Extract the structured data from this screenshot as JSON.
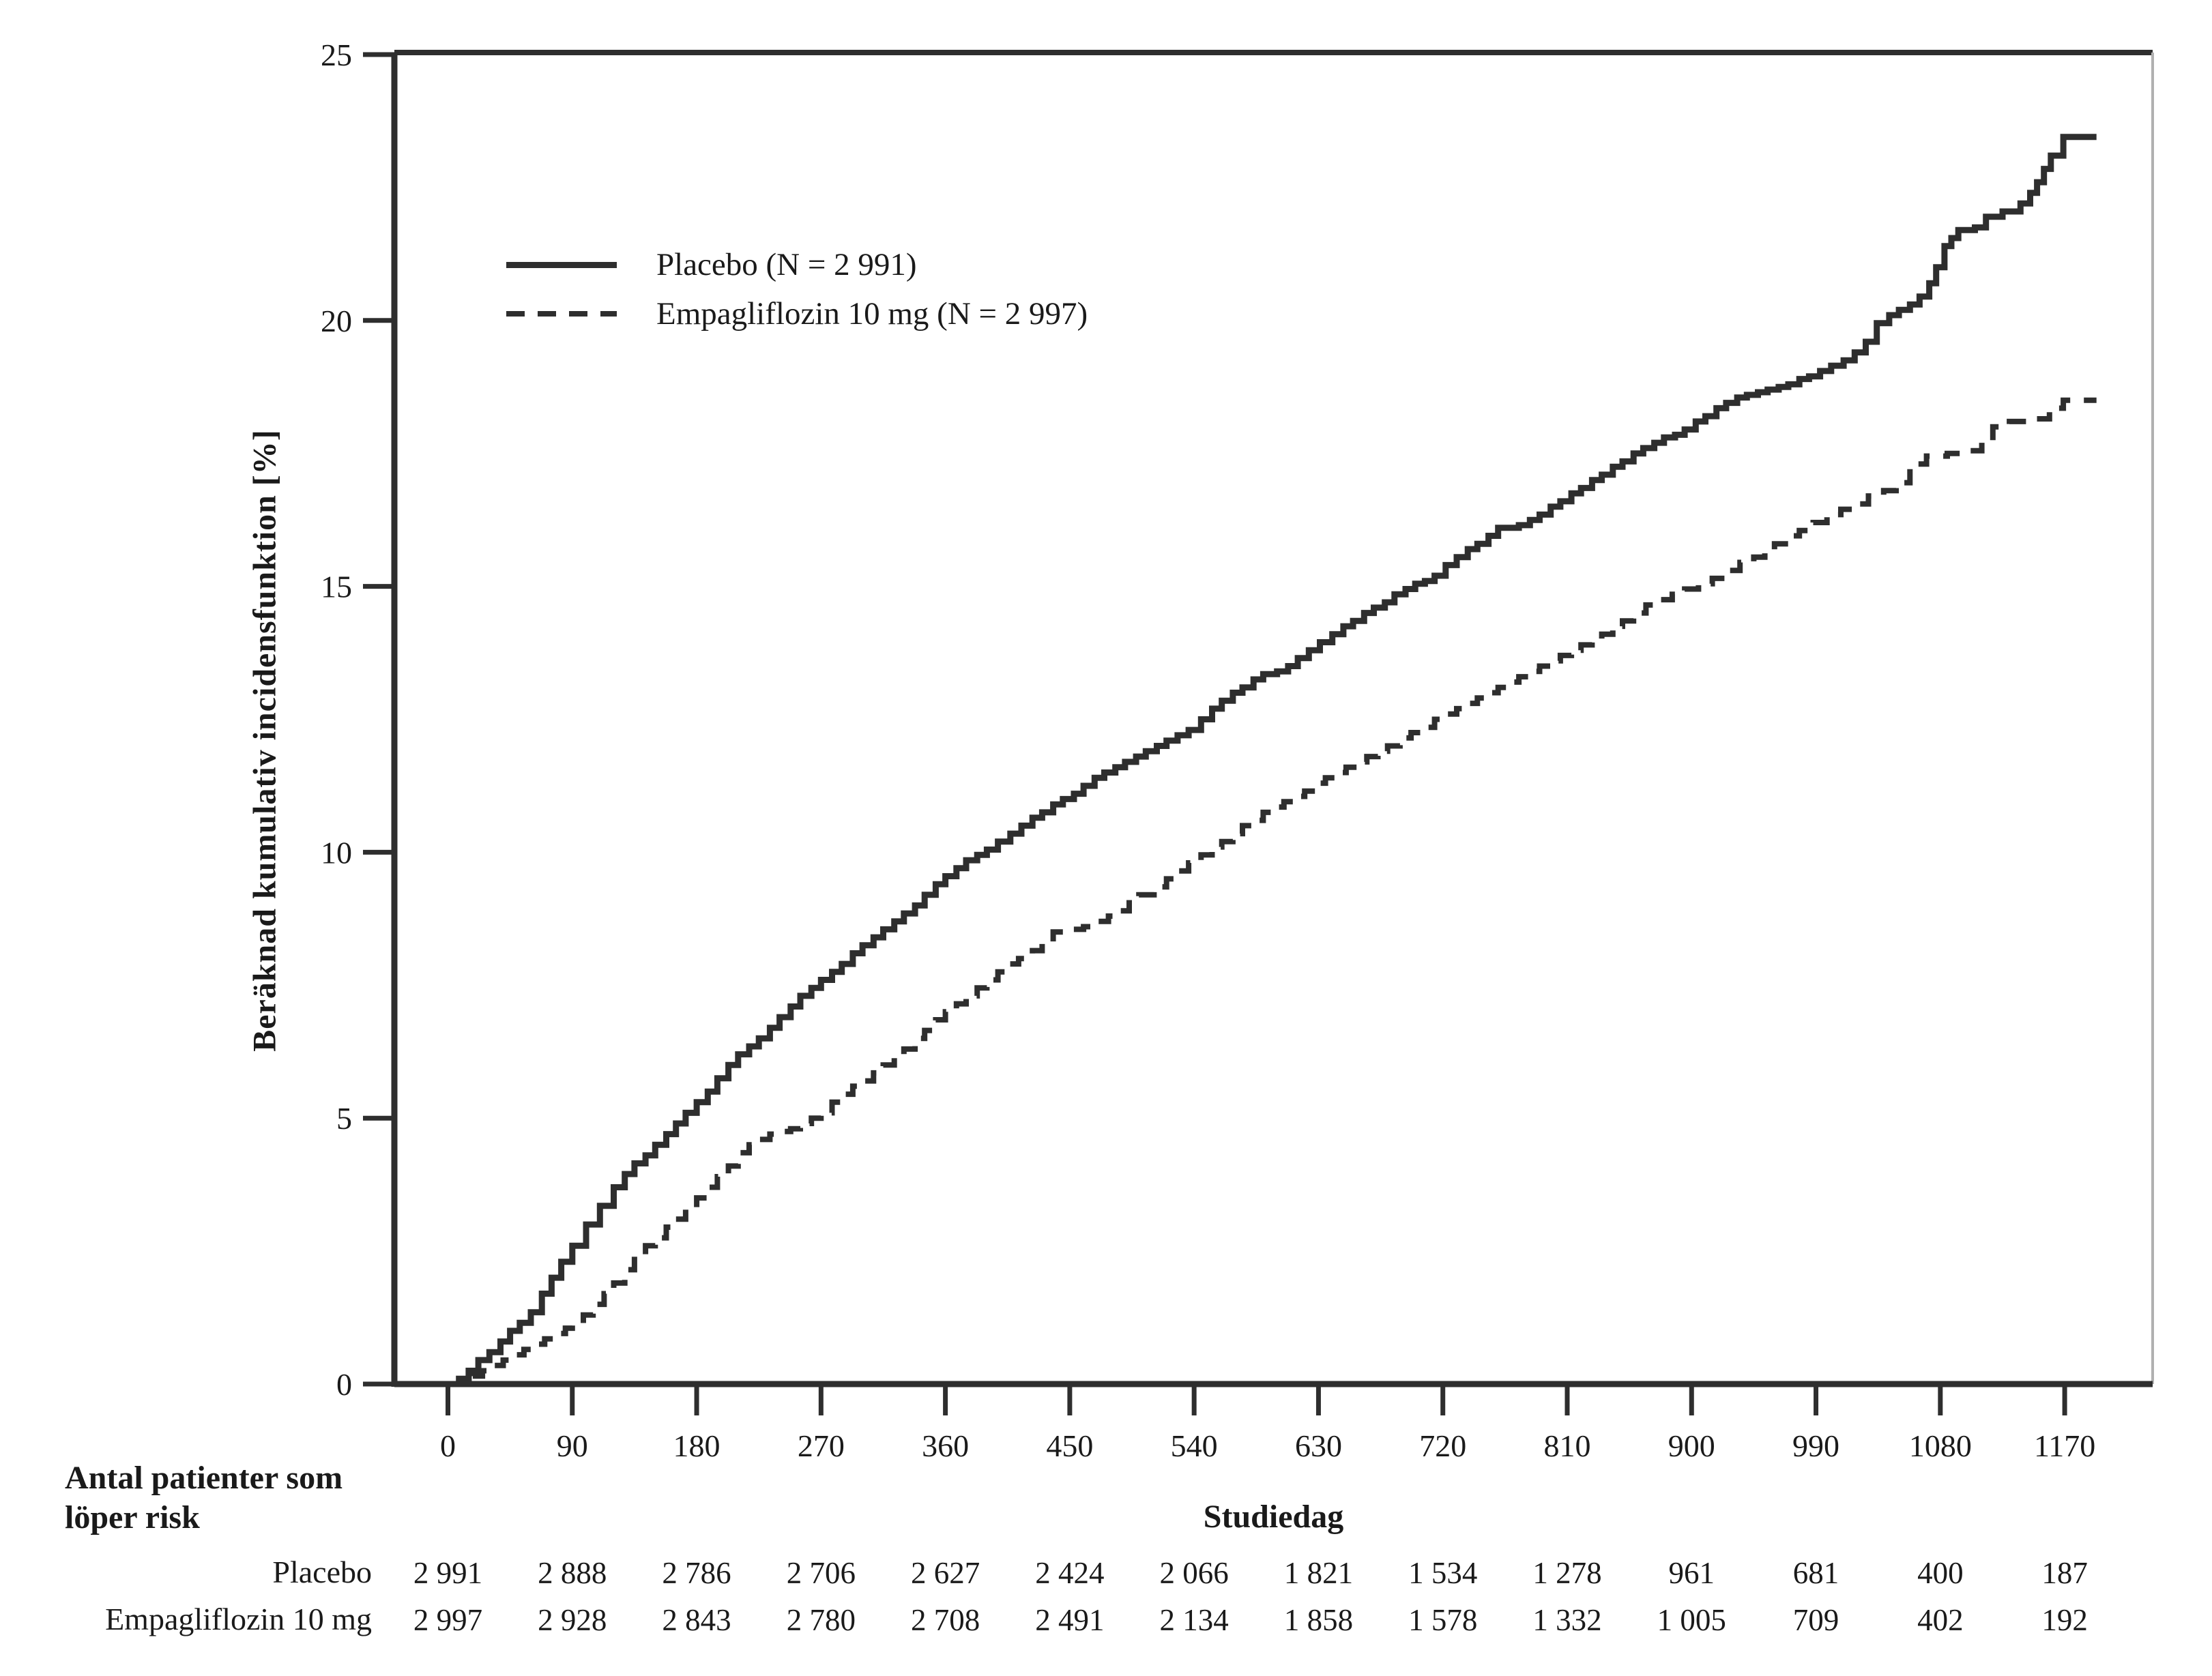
{
  "figure": {
    "background": "#ffffff",
    "risk_table": {
      "header_line1": "Antal patienter som",
      "header_line2": "löper risk",
      "rows": [
        {
          "label": "Placebo",
          "values": [
            "2 991",
            "2 888",
            "2 786",
            "2 706",
            "2 627",
            "2 424",
            "2 066",
            "1 821",
            "1 534",
            "1 278",
            "961",
            "681",
            "400",
            "187"
          ]
        },
        {
          "label": "Empagliflozin 10 mg",
          "values": [
            "2 997",
            "2 928",
            "2 843",
            "2 780",
            "2 708",
            "2 491",
            "2 134",
            "1 858",
            "1 578",
            "1 332",
            "1 005",
            "709",
            "402",
            "192"
          ]
        }
      ]
    }
  },
  "colors": {
    "line": "#2e2e2e",
    "axis": "#2e2e2e",
    "right_border": "#b0b0b0",
    "text": "#1a1a1a"
  },
  "chart_data": {
    "type": "line",
    "subtype": "step-after-cumulative-incidence",
    "title": "",
    "xlabel": "Studiedag",
    "ylabel": "Beräknad kumulativ incidensfunktion [%]",
    "xlim": [
      0,
      1215
    ],
    "ylim": [
      0,
      25
    ],
    "xticks": [
      0,
      90,
      180,
      270,
      360,
      450,
      540,
      630,
      720,
      810,
      900,
      990,
      1080,
      1170
    ],
    "yticks": [
      0,
      5,
      10,
      15,
      20,
      25
    ],
    "grid": false,
    "legend_position": "upper-left-inside",
    "series": [
      {
        "name": "Placebo (N = 2 991)",
        "line_style": "solid",
        "color": "#2e2e2e",
        "points": [
          [
            0,
            0
          ],
          [
            8,
            0.1
          ],
          [
            15,
            0.25
          ],
          [
            22,
            0.45
          ],
          [
            30,
            0.6
          ],
          [
            38,
            0.8
          ],
          [
            45,
            1.0
          ],
          [
            52,
            1.15
          ],
          [
            60,
            1.35
          ],
          [
            68,
            1.7
          ],
          [
            75,
            2.0
          ],
          [
            82,
            2.3
          ],
          [
            90,
            2.6
          ],
          [
            100,
            3.0
          ],
          [
            110,
            3.35
          ],
          [
            120,
            3.7
          ],
          [
            128,
            3.95
          ],
          [
            135,
            4.15
          ],
          [
            143,
            4.3
          ],
          [
            150,
            4.5
          ],
          [
            158,
            4.7
          ],
          [
            165,
            4.9
          ],
          [
            172,
            5.1
          ],
          [
            180,
            5.3
          ],
          [
            188,
            5.5
          ],
          [
            195,
            5.75
          ],
          [
            203,
            6.0
          ],
          [
            210,
            6.2
          ],
          [
            218,
            6.35
          ],
          [
            225,
            6.5
          ],
          [
            233,
            6.7
          ],
          [
            240,
            6.9
          ],
          [
            248,
            7.1
          ],
          [
            255,
            7.3
          ],
          [
            263,
            7.45
          ],
          [
            270,
            7.6
          ],
          [
            278,
            7.75
          ],
          [
            285,
            7.9
          ],
          [
            293,
            8.1
          ],
          [
            300,
            8.25
          ],
          [
            308,
            8.4
          ],
          [
            315,
            8.55
          ],
          [
            323,
            8.7
          ],
          [
            330,
            8.85
          ],
          [
            338,
            9.0
          ],
          [
            345,
            9.2
          ],
          [
            353,
            9.4
          ],
          [
            360,
            9.55
          ],
          [
            368,
            9.7
          ],
          [
            375,
            9.85
          ],
          [
            383,
            9.95
          ],
          [
            390,
            10.05
          ],
          [
            398,
            10.2
          ],
          [
            407,
            10.35
          ],
          [
            415,
            10.5
          ],
          [
            423,
            10.65
          ],
          [
            430,
            10.75
          ],
          [
            438,
            10.9
          ],
          [
            445,
            11.0
          ],
          [
            453,
            11.1
          ],
          [
            460,
            11.25
          ],
          [
            468,
            11.4
          ],
          [
            475,
            11.5
          ],
          [
            483,
            11.6
          ],
          [
            490,
            11.7
          ],
          [
            498,
            11.8
          ],
          [
            505,
            11.9
          ],
          [
            513,
            12.0
          ],
          [
            520,
            12.1
          ],
          [
            528,
            12.2
          ],
          [
            536,
            12.3
          ],
          [
            545,
            12.5
          ],
          [
            553,
            12.7
          ],
          [
            560,
            12.85
          ],
          [
            568,
            13.0
          ],
          [
            575,
            13.1
          ],
          [
            583,
            13.25
          ],
          [
            590,
            13.35
          ],
          [
            600,
            13.4
          ],
          [
            608,
            13.5
          ],
          [
            615,
            13.65
          ],
          [
            623,
            13.8
          ],
          [
            631,
            13.95
          ],
          [
            640,
            14.1
          ],
          [
            648,
            14.25
          ],
          [
            655,
            14.35
          ],
          [
            663,
            14.5
          ],
          [
            670,
            14.6
          ],
          [
            678,
            14.7
          ],
          [
            685,
            14.85
          ],
          [
            693,
            14.95
          ],
          [
            700,
            15.05
          ],
          [
            707,
            15.1
          ],
          [
            714,
            15.2
          ],
          [
            722,
            15.4
          ],
          [
            730,
            15.55
          ],
          [
            738,
            15.7
          ],
          [
            745,
            15.8
          ],
          [
            753,
            15.95
          ],
          [
            760,
            16.1
          ],
          [
            775,
            16.15
          ],
          [
            783,
            16.25
          ],
          [
            790,
            16.35
          ],
          [
            798,
            16.5
          ],
          [
            805,
            16.6
          ],
          [
            813,
            16.75
          ],
          [
            820,
            16.85
          ],
          [
            828,
            17.0
          ],
          [
            835,
            17.1
          ],
          [
            843,
            17.25
          ],
          [
            850,
            17.35
          ],
          [
            858,
            17.5
          ],
          [
            865,
            17.6
          ],
          [
            873,
            17.7
          ],
          [
            880,
            17.8
          ],
          [
            888,
            17.85
          ],
          [
            895,
            17.95
          ],
          [
            903,
            18.1
          ],
          [
            910,
            18.2
          ],
          [
            918,
            18.35
          ],
          [
            925,
            18.45
          ],
          [
            933,
            18.55
          ],
          [
            940,
            18.6
          ],
          [
            948,
            18.65
          ],
          [
            955,
            18.7
          ],
          [
            963,
            18.75
          ],
          [
            970,
            18.8
          ],
          [
            978,
            18.9
          ],
          [
            985,
            18.95
          ],
          [
            993,
            19.05
          ],
          [
            1001,
            19.15
          ],
          [
            1010,
            19.25
          ],
          [
            1018,
            19.4
          ],
          [
            1026,
            19.6
          ],
          [
            1034,
            19.95
          ],
          [
            1043,
            20.1
          ],
          [
            1050,
            20.2
          ],
          [
            1058,
            20.3
          ],
          [
            1065,
            20.45
          ],
          [
            1072,
            20.7
          ],
          [
            1077,
            21.0
          ],
          [
            1083,
            21.4
          ],
          [
            1088,
            21.55
          ],
          [
            1093,
            21.7
          ],
          [
            1105,
            21.75
          ],
          [
            1113,
            21.95
          ],
          [
            1125,
            22.05
          ],
          [
            1138,
            22.2
          ],
          [
            1145,
            22.4
          ],
          [
            1150,
            22.6
          ],
          [
            1155,
            22.85
          ],
          [
            1160,
            23.1
          ],
          [
            1169,
            23.45
          ],
          [
            1193,
            23.45
          ]
        ]
      },
      {
        "name": "Empagliflozin 10 mg (N = 2 997)",
        "line_style": "dashed",
        "color": "#2e2e2e",
        "points": [
          [
            0,
            0
          ],
          [
            10,
            0.05
          ],
          [
            18,
            0.15
          ],
          [
            25,
            0.25
          ],
          [
            33,
            0.35
          ],
          [
            40,
            0.45
          ],
          [
            48,
            0.55
          ],
          [
            55,
            0.65
          ],
          [
            63,
            0.75
          ],
          [
            70,
            0.85
          ],
          [
            78,
            0.95
          ],
          [
            85,
            1.05
          ],
          [
            90,
            1.1
          ],
          [
            98,
            1.3
          ],
          [
            105,
            1.5
          ],
          [
            113,
            1.7
          ],
          [
            120,
            1.9
          ],
          [
            128,
            2.15
          ],
          [
            135,
            2.4
          ],
          [
            143,
            2.6
          ],
          [
            150,
            2.75
          ],
          [
            158,
            2.95
          ],
          [
            165,
            3.1
          ],
          [
            172,
            3.3
          ],
          [
            180,
            3.5
          ],
          [
            188,
            3.7
          ],
          [
            195,
            3.9
          ],
          [
            203,
            4.1
          ],
          [
            210,
            4.35
          ],
          [
            218,
            4.5
          ],
          [
            225,
            4.6
          ],
          [
            233,
            4.7
          ],
          [
            240,
            4.75
          ],
          [
            248,
            4.8
          ],
          [
            255,
            4.9
          ],
          [
            263,
            5.0
          ],
          [
            270,
            5.1
          ],
          [
            278,
            5.3
          ],
          [
            285,
            5.45
          ],
          [
            293,
            5.6
          ],
          [
            300,
            5.7
          ],
          [
            308,
            5.85
          ],
          [
            315,
            6.0
          ],
          [
            323,
            6.15
          ],
          [
            330,
            6.3
          ],
          [
            338,
            6.5
          ],
          [
            345,
            6.65
          ],
          [
            353,
            6.85
          ],
          [
            360,
            7.0
          ],
          [
            368,
            7.15
          ],
          [
            375,
            7.3
          ],
          [
            383,
            7.45
          ],
          [
            390,
            7.6
          ],
          [
            398,
            7.75
          ],
          [
            405,
            7.9
          ],
          [
            413,
            8.0
          ],
          [
            423,
            8.15
          ],
          [
            430,
            8.3
          ],
          [
            438,
            8.5
          ],
          [
            448,
            8.55
          ],
          [
            460,
            8.6
          ],
          [
            470,
            8.7
          ],
          [
            478,
            8.8
          ],
          [
            485,
            8.9
          ],
          [
            493,
            9.05
          ],
          [
            500,
            9.2
          ],
          [
            511,
            9.35
          ],
          [
            520,
            9.5
          ],
          [
            528,
            9.65
          ],
          [
            536,
            9.8
          ],
          [
            545,
            9.95
          ],
          [
            553,
            10.1
          ],
          [
            560,
            10.2
          ],
          [
            568,
            10.35
          ],
          [
            575,
            10.5
          ],
          [
            583,
            10.6
          ],
          [
            590,
            10.75
          ],
          [
            598,
            10.85
          ],
          [
            605,
            10.95
          ],
          [
            613,
            11.05
          ],
          [
            620,
            11.15
          ],
          [
            628,
            11.3
          ],
          [
            635,
            11.4
          ],
          [
            643,
            11.5
          ],
          [
            650,
            11.6
          ],
          [
            658,
            11.7
          ],
          [
            665,
            11.8
          ],
          [
            673,
            11.9
          ],
          [
            680,
            12.0
          ],
          [
            689,
            12.15
          ],
          [
            697,
            12.25
          ],
          [
            705,
            12.35
          ],
          [
            714,
            12.5
          ],
          [
            722,
            12.6
          ],
          [
            730,
            12.7
          ],
          [
            738,
            12.8
          ],
          [
            745,
            12.9
          ],
          [
            753,
            13.0
          ],
          [
            760,
            13.1
          ],
          [
            768,
            13.2
          ],
          [
            775,
            13.3
          ],
          [
            783,
            13.4
          ],
          [
            790,
            13.5
          ],
          [
            798,
            13.6
          ],
          [
            805,
            13.7
          ],
          [
            813,
            13.8
          ],
          [
            820,
            13.9
          ],
          [
            828,
            14.0
          ],
          [
            835,
            14.1
          ],
          [
            843,
            14.25
          ],
          [
            850,
            14.35
          ],
          [
            858,
            14.5
          ],
          [
            867,
            14.65
          ],
          [
            875,
            14.75
          ],
          [
            886,
            14.85
          ],
          [
            895,
            14.95
          ],
          [
            905,
            15.05
          ],
          [
            915,
            15.15
          ],
          [
            925,
            15.3
          ],
          [
            935,
            15.45
          ],
          [
            945,
            15.55
          ],
          [
            953,
            15.65
          ],
          [
            960,
            15.8
          ],
          [
            970,
            15.95
          ],
          [
            978,
            16.05
          ],
          [
            988,
            16.2
          ],
          [
            998,
            16.35
          ],
          [
            1008,
            16.45
          ],
          [
            1018,
            16.55
          ],
          [
            1028,
            16.7
          ],
          [
            1039,
            16.8
          ],
          [
            1048,
            16.95
          ],
          [
            1058,
            17.3
          ],
          [
            1070,
            17.45
          ],
          [
            1085,
            17.5
          ],
          [
            1100,
            17.55
          ],
          [
            1110,
            17.8
          ],
          [
            1118,
            18.0
          ],
          [
            1130,
            18.1
          ],
          [
            1145,
            18.15
          ],
          [
            1159,
            18.35
          ],
          [
            1169,
            18.5
          ],
          [
            1193,
            18.5
          ]
        ]
      }
    ],
    "at_risk_days": [
      0,
      90,
      180,
      270,
      360,
      450,
      540,
      630,
      720,
      810,
      900,
      990,
      1080,
      1170
    ]
  }
}
